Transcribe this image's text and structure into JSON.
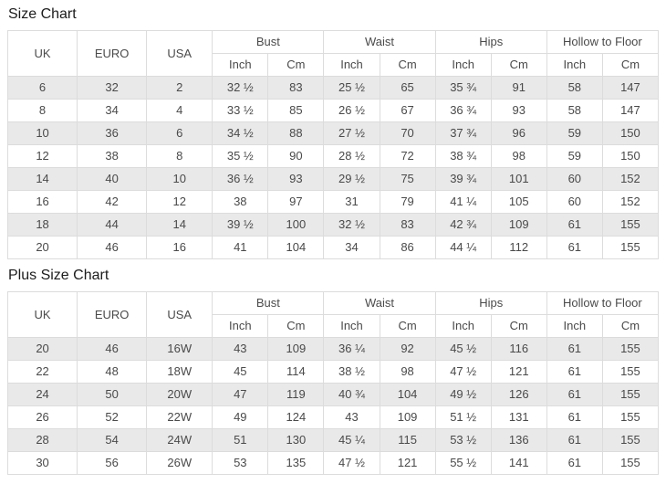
{
  "colors": {
    "stripe": "#e9e9e9",
    "border": "#dcdcdc",
    "cell_text": "#4a4a4a",
    "title_text": "#1c1c1c"
  },
  "tables": [
    {
      "title": "Size Chart",
      "simple_columns": [
        "UK",
        "EURO",
        "USA"
      ],
      "group_columns": [
        {
          "label": "Bust",
          "subs": [
            "Inch",
            "Cm"
          ]
        },
        {
          "label": "Waist",
          "subs": [
            "Inch",
            "Cm"
          ]
        },
        {
          "label": "Hips",
          "subs": [
            "Inch",
            "Cm"
          ]
        },
        {
          "label": "Hollow to Floor",
          "subs": [
            "Inch",
            "Cm"
          ]
        }
      ],
      "rows": [
        [
          "6",
          "32",
          "2",
          "32 ½",
          "83",
          "25 ½",
          "65",
          "35 ¾",
          "91",
          "58",
          "147"
        ],
        [
          "8",
          "34",
          "4",
          "33 ½",
          "85",
          "26 ½",
          "67",
          "36 ¾",
          "93",
          "58",
          "147"
        ],
        [
          "10",
          "36",
          "6",
          "34 ½",
          "88",
          "27 ½",
          "70",
          "37 ¾",
          "96",
          "59",
          "150"
        ],
        [
          "12",
          "38",
          "8",
          "35 ½",
          "90",
          "28 ½",
          "72",
          "38 ¾",
          "98",
          "59",
          "150"
        ],
        [
          "14",
          "40",
          "10",
          "36 ½",
          "93",
          "29 ½",
          "75",
          "39 ¾",
          "101",
          "60",
          "152"
        ],
        [
          "16",
          "42",
          "12",
          "38",
          "97",
          "31",
          "79",
          "41 ¼",
          "105",
          "60",
          "152"
        ],
        [
          "18",
          "44",
          "14",
          "39 ½",
          "100",
          "32 ½",
          "83",
          "42 ¾",
          "109",
          "61",
          "155"
        ],
        [
          "20",
          "46",
          "16",
          "41",
          "104",
          "34",
          "86",
          "44 ¼",
          "112",
          "61",
          "155"
        ]
      ]
    },
    {
      "title": "Plus Size Chart",
      "simple_columns": [
        "UK",
        "EURO",
        "USA"
      ],
      "group_columns": [
        {
          "label": "Bust",
          "subs": [
            "Inch",
            "Cm"
          ]
        },
        {
          "label": "Waist",
          "subs": [
            "Inch",
            "Cm"
          ]
        },
        {
          "label": "Hips",
          "subs": [
            "Inch",
            "Cm"
          ]
        },
        {
          "label": "Hollow to Floor",
          "subs": [
            "Inch",
            "Cm"
          ]
        }
      ],
      "rows": [
        [
          "20",
          "46",
          "16W",
          "43",
          "109",
          "36 ¼",
          "92",
          "45 ½",
          "116",
          "61",
          "155"
        ],
        [
          "22",
          "48",
          "18W",
          "45",
          "114",
          "38 ½",
          "98",
          "47 ½",
          "121",
          "61",
          "155"
        ],
        [
          "24",
          "50",
          "20W",
          "47",
          "119",
          "40 ¾",
          "104",
          "49 ½",
          "126",
          "61",
          "155"
        ],
        [
          "26",
          "52",
          "22W",
          "49",
          "124",
          "43",
          "109",
          "51 ½",
          "131",
          "61",
          "155"
        ],
        [
          "28",
          "54",
          "24W",
          "51",
          "130",
          "45 ¼",
          "115",
          "53 ½",
          "136",
          "61",
          "155"
        ],
        [
          "30",
          "56",
          "26W",
          "53",
          "135",
          "47 ½",
          "121",
          "55 ½",
          "141",
          "61",
          "155"
        ]
      ]
    }
  ]
}
